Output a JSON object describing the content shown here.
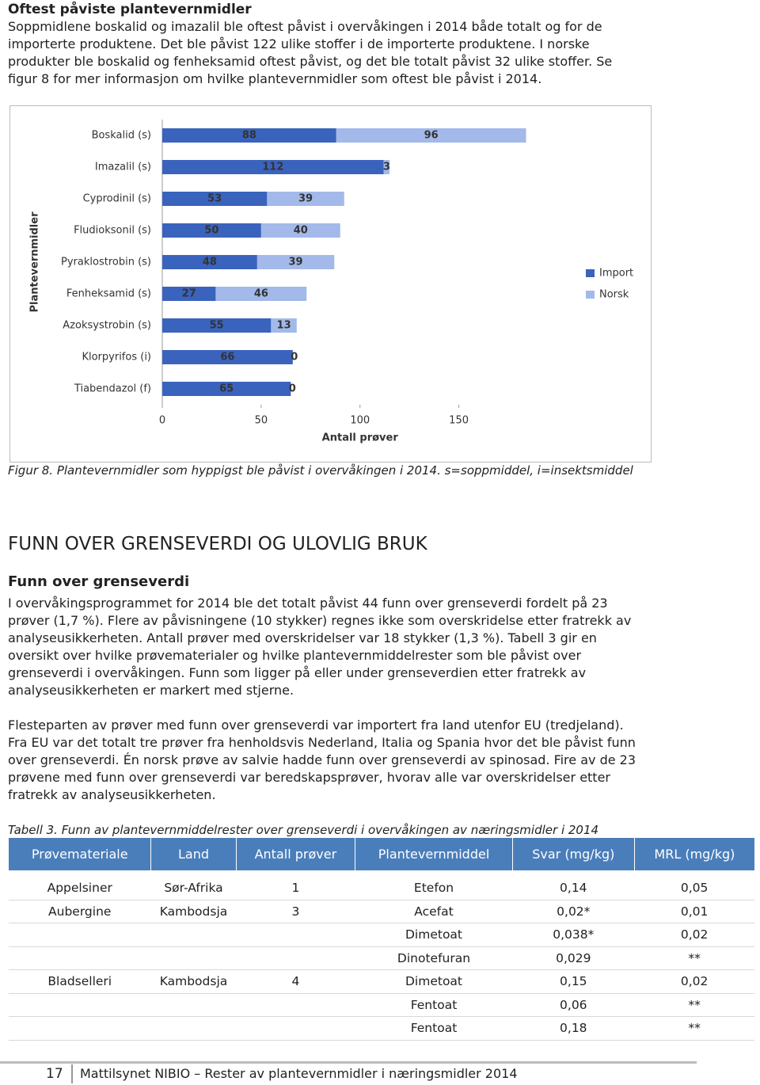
{
  "header": {
    "title": "Oftest påviste plantevernmidler",
    "lines": [
      "Soppmidlene boskalid og imazalil ble oftest påvist i overvåkingen i 2014 både totalt og for de",
      "importerte produktene. Det ble påvist 122 ulike stoffer i de importerte produktene. I norske",
      "produkter ble boskalid og fenheksamid oftest påvist, og det ble totalt påvist 32 ulike stoffer. Se",
      "figur 8 for mer informasjon om hvilke plantevernmidler som oftest ble påvist i 2014."
    ]
  },
  "chart_data": {
    "type": "bar",
    "orientation": "horizontal",
    "stacked": true,
    "x_label": "Antall prøver",
    "y_label": "Plantevernmidler",
    "categories": [
      "Boskalid (s)",
      "Imazalil (s)",
      "Cyprodinil (s)",
      "Fludioksonil (s)",
      "Pyraklostrobin (s)",
      "Fenheksamid (s)",
      "Azoksystrobin (s)",
      "Klorpyrifos (i)",
      "Tiabendazol (f)"
    ],
    "series": [
      {
        "name": "Import",
        "color": "#3a63bd",
        "values": [
          88,
          112,
          53,
          50,
          48,
          27,
          55,
          66,
          65
        ]
      },
      {
        "name": "Norsk",
        "color": "#a3b9e9",
        "values": [
          96,
          3,
          39,
          40,
          39,
          46,
          13,
          0,
          0
        ]
      }
    ],
    "xlim": [
      0,
      185
    ],
    "xticks": [
      0,
      50,
      100,
      150
    ],
    "legend": "right"
  },
  "figure": {
    "caption": "Figur 8. Plantevernmidler som hyppigst ble påvist i overvåkingen i 2014. s=soppmiddel, i=insektsmiddel"
  },
  "section": {
    "heading": "FUNN OVER GRENSEVERDI OG ULOVLIG BRUK",
    "subheading": "Funn over grenseverdi",
    "paragraphs": [
      [
        "I overvåkingsprogrammet for 2014 ble det totalt påvist 44 funn over grenseverdi fordelt på 23",
        "prøver (1,7 %). Flere av påvisningene (10 stykker) regnes ikke som overskridelse etter fratrekk av",
        "analyseusikkerheten. Antall prøver med overskridelser var 18 stykker (1,3 %). Tabell 3 gir en",
        "oversikt over hvilke prøvematerialer og hvilke plantevernmiddelrester som ble påvist over",
        "grenseverdi i overvåkingen. Funn som ligger på eller under grenseverdien etter fratrekk av",
        "analyseusikkerheten er markert med stjerne."
      ],
      [
        "Flesteparten av prøver med funn over grenseverdi var importert fra land utenfor EU (tredjeland).",
        "Fra EU var det totalt tre prøver fra henholdsvis Nederland, Italia og Spania hvor det ble påvist funn",
        "over grenseverdi. Én norsk prøve av salvie hadde funn over grenseverdi av spinosad. Fire av de 23",
        "prøvene med funn over grenseverdi var beredskapsprøver, hvorav alle var overskridelser etter",
        "fratrekk av analyseusikkerheten."
      ]
    ]
  },
  "table": {
    "caption": "Tabell 3. Funn av plantevernmiddelrester over grenseverdi i overvåkingen av næringsmidler i 2014",
    "columns": [
      "Prøvemateriale",
      "Land",
      "Antall prøver",
      "Plantevernmiddel",
      "Svar (mg/kg)",
      "MRL (mg/kg)"
    ],
    "rows": [
      [
        "Appelsiner",
        "Sør-Afrika",
        "1",
        "Etefon",
        "0,14",
        "0,05"
      ],
      [
        "Aubergine",
        "Kambodsja",
        "3",
        "Acefat",
        "0,02*",
        "0,01"
      ],
      [
        null,
        null,
        null,
        "Dimetoat",
        "0,038*",
        "0,02"
      ],
      [
        null,
        null,
        null,
        "Dinotefuran",
        "0,029",
        "**"
      ],
      [
        "Bladselleri",
        "Kambodsja",
        "4",
        "Dimetoat",
        "0,15",
        "0,02"
      ],
      [
        null,
        null,
        null,
        "Fentoat",
        "0,06",
        "**"
      ],
      [
        null,
        null,
        null,
        "Fentoat",
        "0,18",
        "**"
      ]
    ]
  },
  "footer": {
    "page": "17",
    "text": "Mattilsynet NIBIO – Rester av plantevernmidler i næringsmidler 2014"
  }
}
